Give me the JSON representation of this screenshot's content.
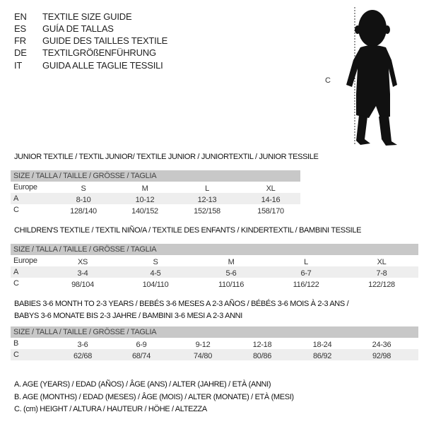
{
  "header": {
    "languages": [
      {
        "code": "EN",
        "text": "TEXTILE SIZE GUIDE"
      },
      {
        "code": "ES",
        "text": "GUÍA DE TALLAS"
      },
      {
        "code": "FR",
        "text": "GUIDE DES TAILLES TEXTILE"
      },
      {
        "code": "DE",
        "text": "TEXTILGRÖßENFÜHRUNG"
      },
      {
        "code": "IT",
        "text": "GUIDA ALLE TAGLIE TESSILI"
      }
    ],
    "figure_label": "C",
    "figure_icon": "child-silhouette-icon"
  },
  "junior": {
    "title": "JUNIOR TEXTILE / TEXTIL JUNIOR/ TEXTILE JUNIOR / JUNIORTEXTIL / JUNIOR TESSILE",
    "header": "SIZE / TALLA / TAILLE / GRÖSSE / TAGLIA",
    "rows": [
      {
        "label": "Europe",
        "cells": [
          "S",
          "M",
          "L",
          "XL"
        ]
      },
      {
        "label": "A",
        "cells": [
          "8-10",
          "10-12",
          "12-13",
          "14-16"
        ]
      },
      {
        "label": "C",
        "cells": [
          "128/140",
          "140/152",
          "152/158",
          "158/170"
        ]
      }
    ]
  },
  "children": {
    "title": "CHILDREN'S TEXTILE / TEXTIL NIÑO/A / TEXTILE DES ENFANTS / KINDERTEXTIL / BAMBINI TESSILE",
    "header": "SIZE / TALLA / TAILLE / GRÖSSE / TAGLIA",
    "rows": [
      {
        "label": "Europe",
        "cells": [
          "XS",
          "S",
          "M",
          "L",
          "XL"
        ]
      },
      {
        "label": "A",
        "cells": [
          "3-4",
          "4-5",
          "5-6",
          "6-7",
          "7-8"
        ]
      },
      {
        "label": "C",
        "cells": [
          "98/104",
          "104/110",
          "110/116",
          "116/122",
          "122/128"
        ]
      }
    ]
  },
  "babies": {
    "title_line1": "BABIES 3-6 MONTH TO 2-3 YEARS / BEBÉS 3-6 MESES A 2-3 AÑOS / BÉBÉS 3-6 MOIS À 2-3 ANS /",
    "title_line2": "BABYS 3-6 MONATE BIS 2-3 JAHRE / BAMBINI 3-6 MESI A 2-3 ANNI",
    "header": "SIZE / TALLA / TAILLE / GRÖSSE / TAGLIA",
    "rows": [
      {
        "label": "B",
        "cells": [
          "3-6",
          "6-9",
          "9-12",
          "12-18",
          "18-24",
          "24-36"
        ]
      },
      {
        "label": "C",
        "cells": [
          "62/68",
          "68/74",
          "74/80",
          "80/86",
          "86/92",
          "92/98"
        ]
      }
    ]
  },
  "notes": [
    "A. AGE (YEARS) / EDAD (AÑOS) / ÂGE (ANS) / ALTER (JAHRE) / ETÀ (ANNI)",
    "B. AGE (MONTHS) / EDAD (MESES) / ÂGE (MOIS) / ALTER (MONATE) / ETÀ (MESI)",
    "C. (cm) HEIGHT / ALTURA / HAUTEUR / HÖHE / ALTEZZA"
  ]
}
